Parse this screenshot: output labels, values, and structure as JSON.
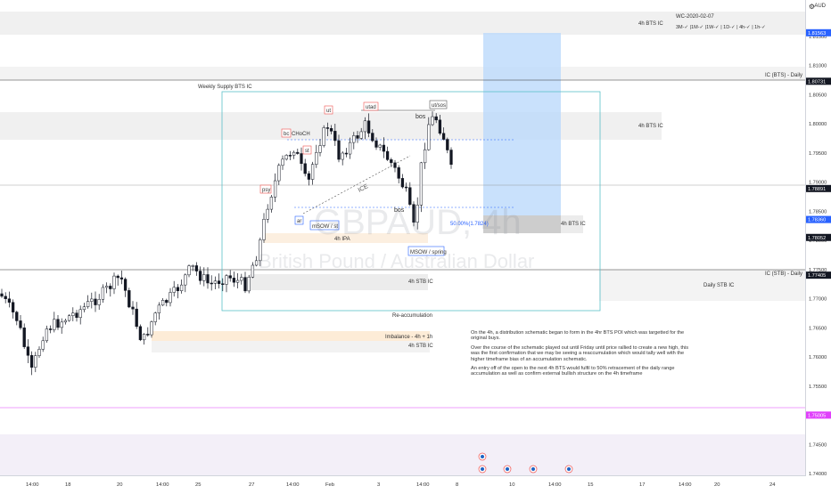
{
  "header": {
    "currency": "AUD",
    "title": "WC-2020-02-07",
    "timeframes": "3M-✓ |1M-✓ |1W-✓ | 1D-✓ | 4h-✓ | 1h-✓"
  },
  "watermark": {
    "symbol": "GBPAUD, 4h",
    "name": "British Pound / Australian Dollar"
  },
  "zones": {
    "top_4h_bts": "4h BTS IC",
    "ic_bts_daily": "IC (BTS) - Daily",
    "weekly_supply": "Weekly Supply BTS IC",
    "mid_4h_bts": "4h BTS IC",
    "low_4h_bts": "4h BTS IC",
    "ic_stb_daily": "IC (STB) - Daily",
    "stb_4h": "4h STB IC",
    "daily_stb": "Daily STB IC",
    "reaccumulation": "Re-accumulation",
    "imbalance": "Imbalance - 4h + 1h",
    "stb_4h_low": "4h STB IC",
    "ipa": "4h IPA",
    "fifty_pct": "50.00%(1.7824)"
  },
  "labels": {
    "psy": "psy",
    "bc": "bc",
    "choch": "CHoCH",
    "ut": "ut",
    "st": "st",
    "utad": "utad",
    "utsos": "ut/sos",
    "bos_top": "bos",
    "bos_mid": "bos",
    "ice": "ICE",
    "ar": "ar",
    "msow_st": "mSOW / st",
    "msow_spring": "MSOW / spring"
  },
  "note": {
    "p1": "On the 4h, a distribution schematic began to form in the 4hr BTS POI which was targetted for the original buys.",
    "p2": "Over the course of the schematic played out until Friday until price rallied to create a new high, this was the first confirmation that we may be seeing a reaccumulation which would tally well with the higher timeframe bias of an accumulation schematic.",
    "p3": "An entry off of the open to the next 4h BTS would fulfil to 50% retracement of the daily range accumulation as well as confirm external bullish structure on the 4h timeframe"
  },
  "price_axis": {
    "ticks": [
      "1.81500",
      "1.81000",
      "1.80500",
      "1.80000",
      "1.79500",
      "1.79000",
      "1.78500",
      "1.78000",
      "1.77500",
      "1.77000",
      "1.76500",
      "1.76000",
      "1.75500",
      "1.75000",
      "1.74500",
      "1.74000"
    ],
    "tags": [
      {
        "value": "1.81563",
        "color": "#2962ff"
      },
      {
        "value": "1.80731",
        "color": "#131722"
      },
      {
        "value": "1.78891",
        "color": "#131722"
      },
      {
        "value": "1.78360",
        "color": "#2962ff"
      },
      {
        "value": "1.78052",
        "color": "#131722"
      },
      {
        "value": "1.77405",
        "color": "#131722"
      },
      {
        "value": "1.75005",
        "color": "#e040fb"
      }
    ]
  },
  "time_axis": [
    "14:00",
    "18",
    "20",
    "14:00",
    "25",
    "27",
    "14:00",
    "Feb",
    "3",
    "14:00",
    "8",
    "10",
    "14:00",
    "15",
    "17",
    "14:00",
    "20",
    "24"
  ],
  "colors": {
    "up": "#26a69a",
    "down": "#ef5350",
    "candle": "#131722",
    "position": "#bbd9fb",
    "accent": "#2962ff"
  },
  "events": [
    "flag-event",
    "flag-event",
    "flag-event",
    "flag-event",
    "flag-event"
  ]
}
